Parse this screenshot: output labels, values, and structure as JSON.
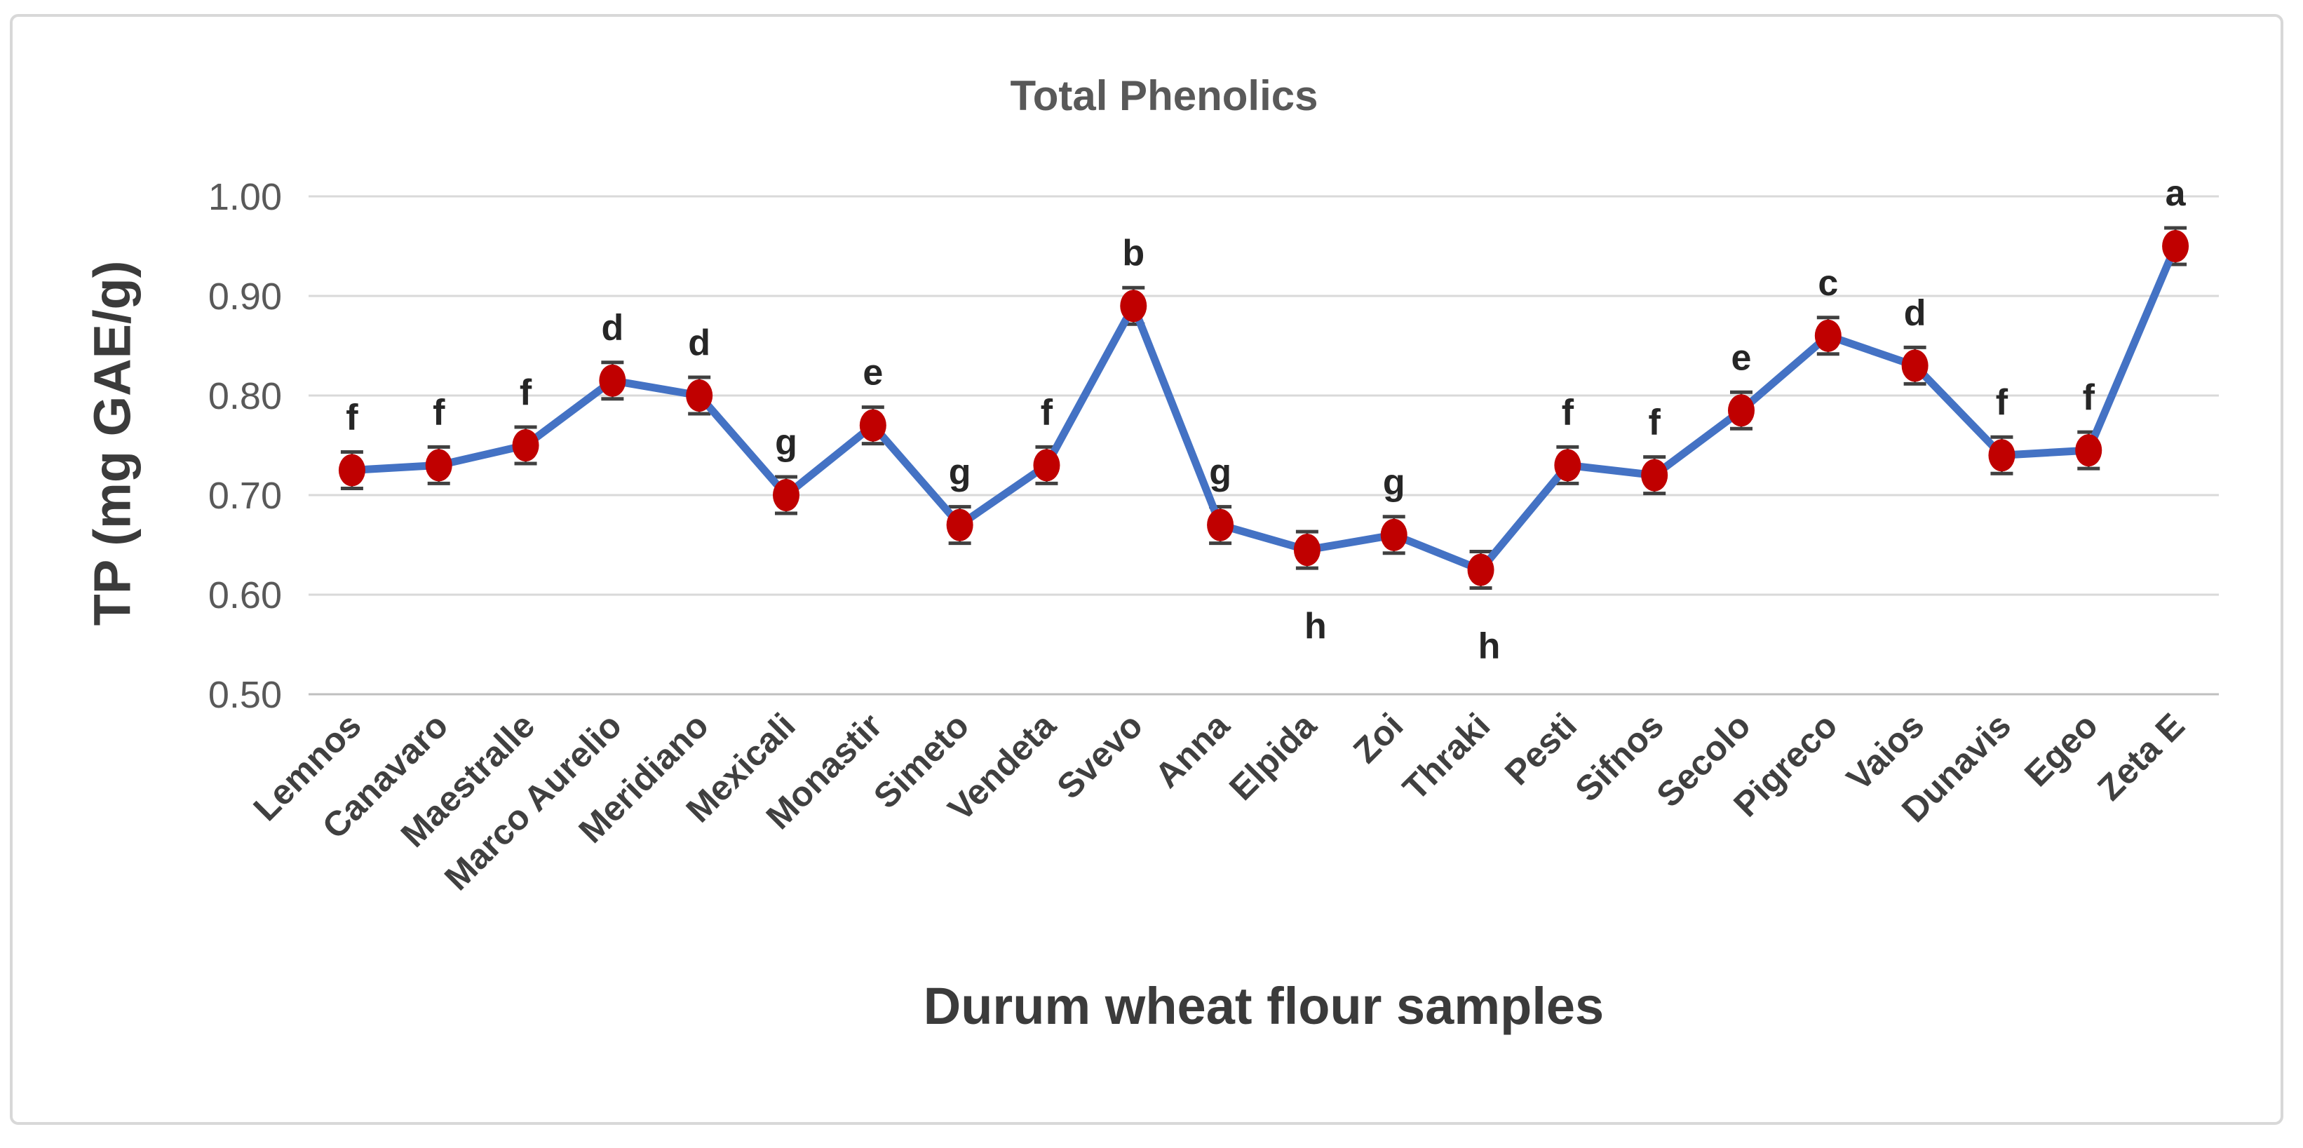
{
  "chart_data": {
    "type": "line",
    "title": "Total Phenolics",
    "xlabel": "Durum wheat flour samples",
    "ylabel": "TP (mg GAE/g)",
    "ylim": [
      0.5,
      1.0
    ],
    "ytick_step": 0.1,
    "yticks": [
      "1.00",
      "0.90",
      "0.80",
      "0.70",
      "0.60",
      "0.50"
    ],
    "grid": "horizontal",
    "legend": "none",
    "error_bars": "small, ~0.008 per point",
    "categories": [
      "Lemnos",
      "Canavaro",
      "Maestralle",
      "Marco Aurelio",
      "Meridiano",
      "Mexicali",
      "Monastir",
      "Simeto",
      "Vendeta",
      "Svevo",
      "Anna",
      "Elpida",
      "Zoi",
      "Thraki",
      "Pesti",
      "Sifnos",
      "Secolo",
      "Pigreco",
      "Vaios",
      "Dunavis",
      "Egeo",
      "Zeta E"
    ],
    "series": [
      {
        "name": "Total Phenolics",
        "values": [
          0.725,
          0.73,
          0.75,
          0.815,
          0.8,
          0.7,
          0.77,
          0.67,
          0.73,
          0.89,
          0.67,
          0.645,
          0.66,
          0.625,
          0.73,
          0.72,
          0.785,
          0.86,
          0.83,
          0.74,
          0.745,
          0.95
        ],
        "sig_letters": [
          "f",
          "f",
          "f",
          "d",
          "d",
          "g",
          "e",
          "g",
          "f",
          "b",
          "g",
          "h",
          "g",
          "h",
          "f",
          "f",
          "e",
          "c",
          "d",
          "f",
          "f",
          "a"
        ],
        "letter_side": [
          "above",
          "above",
          "above",
          "above",
          "above",
          "above",
          "above",
          "above",
          "above",
          "above",
          "above",
          "below",
          "above",
          "below",
          "above",
          "above",
          "above",
          "above",
          "above",
          "above",
          "above",
          "above"
        ]
      }
    ],
    "colors": {
      "line": "#4472C4",
      "marker": "#C00000",
      "error_bar": "#404040",
      "gridline": "#D9D9D9",
      "axis_line": "#BFBFBF",
      "title_text": "#595959",
      "tick_text": "#595959",
      "category_text": "#404040",
      "axis_title_text": "#3B3B3B",
      "letter_text": "#262626",
      "frame_border": "#D8D8D8",
      "background": "#FFFFFF"
    }
  }
}
